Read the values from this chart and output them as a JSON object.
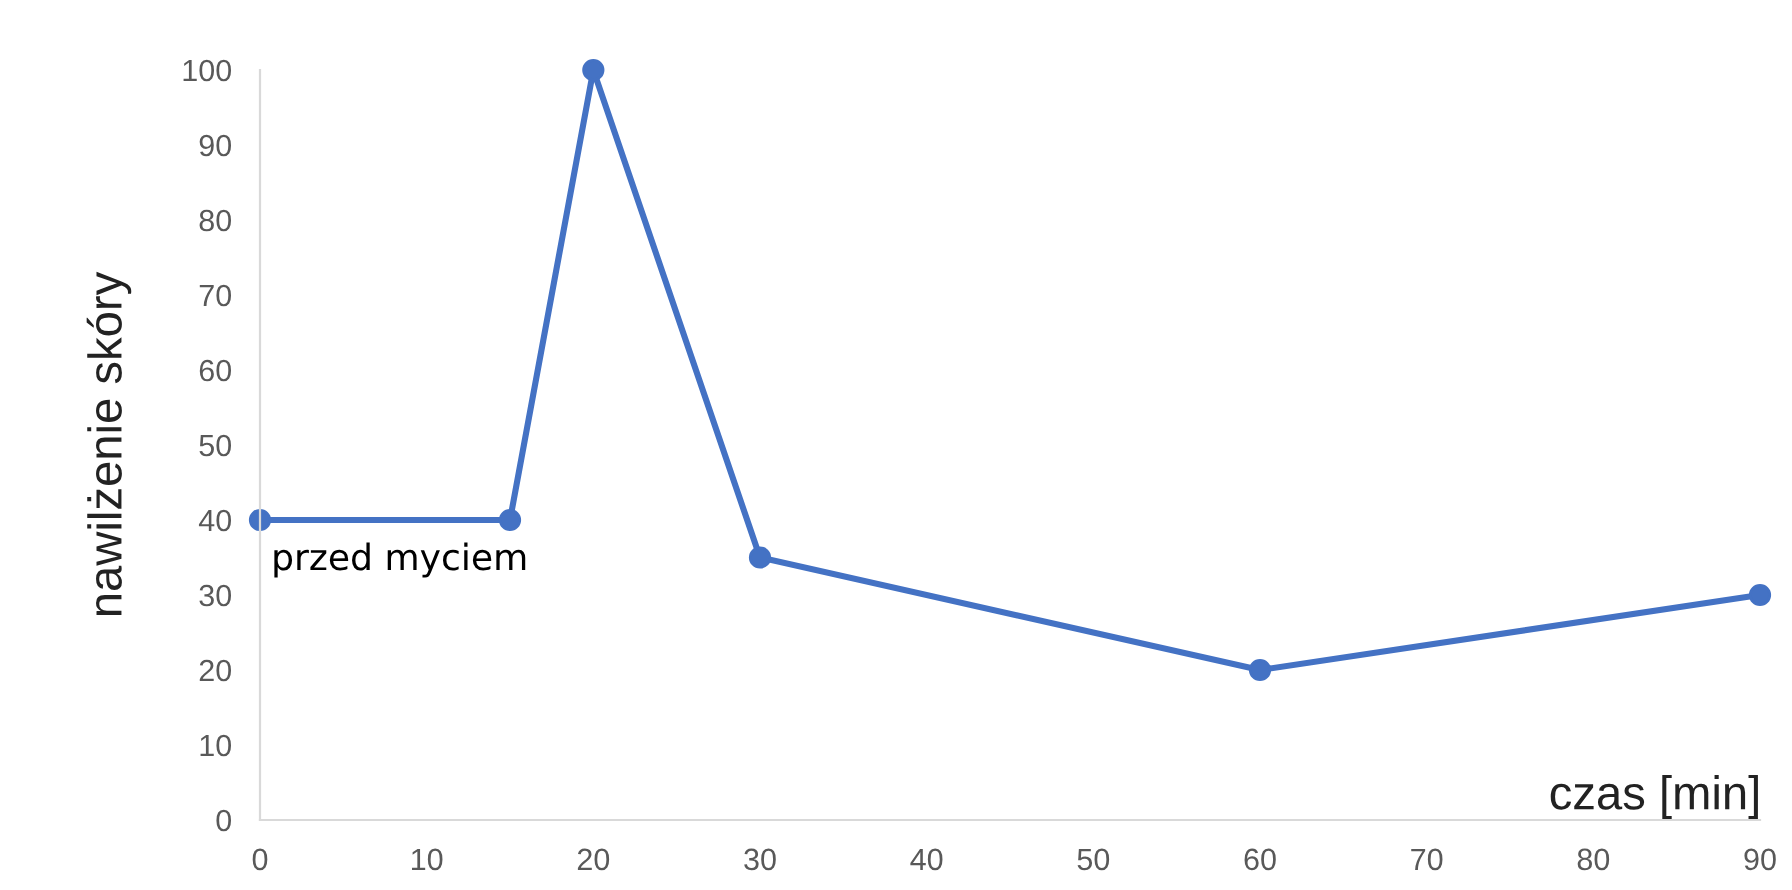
{
  "chart_data": {
    "type": "line",
    "xlabel": "czas [min]",
    "ylabel": "nawilżenie skóry",
    "x": [
      0,
      15,
      20,
      30,
      60,
      90
    ],
    "series": [
      {
        "color": "#4472c4",
        "values": [
          40,
          40,
          100,
          35,
          20,
          30
        ]
      }
    ],
    "xlim": [
      0,
      90
    ],
    "ylim": [
      0,
      100
    ],
    "xticks": [
      0,
      10,
      20,
      30,
      40,
      50,
      60,
      70,
      80,
      90
    ],
    "yticks": [
      0,
      10,
      20,
      30,
      40,
      50,
      60,
      70,
      80,
      90,
      100
    ],
    "marker": "circle",
    "line_style": "solid",
    "grid": false,
    "legend": false,
    "annotations": [
      {
        "text": "przed myciem",
        "x": 0,
        "y": 40
      }
    ]
  }
}
